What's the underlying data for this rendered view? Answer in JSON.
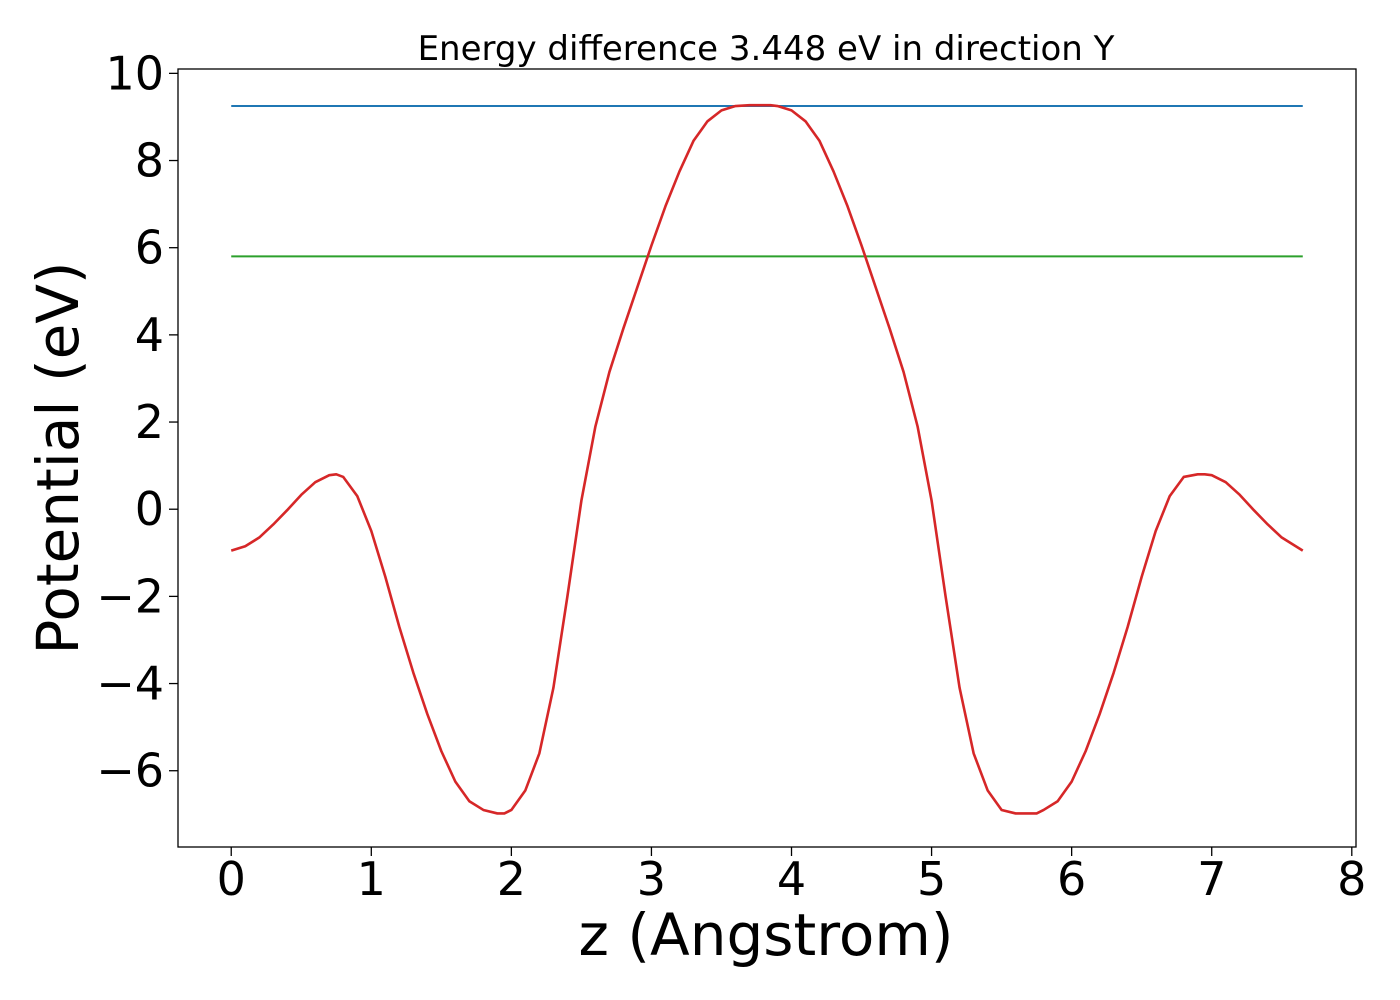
{
  "chart_data": {
    "type": "line",
    "title": "Energy difference 3.448 eV in direction Y",
    "xlabel": "z (Angstrom)",
    "ylabel": "Potential (eV)",
    "xlim": [
      -0.38,
      8.03
    ],
    "ylim": [
      -7.75,
      10.1
    ],
    "x_ticks": [
      0,
      1,
      2,
      3,
      4,
      5,
      6,
      7,
      8
    ],
    "x_tick_labels": [
      "0",
      "1",
      "2",
      "3",
      "4",
      "5",
      "6",
      "7",
      "8"
    ],
    "y_ticks": [
      -6,
      -4,
      -2,
      0,
      2,
      4,
      6,
      8,
      10
    ],
    "y_tick_labels": [
      "−6",
      "−4",
      "−2",
      "0",
      "2",
      "4",
      "6",
      "8",
      "10"
    ],
    "grid": false,
    "series": [
      {
        "color": "#1f77b4",
        "x": [
          0,
          7.65
        ],
        "y": [
          9.25,
          9.25
        ]
      },
      {
        "color": "#2ca02c",
        "x": [
          0,
          7.65
        ],
        "y": [
          5.8,
          5.8
        ]
      },
      {
        "color": "#d62728",
        "x": [
          0,
          0.1,
          0.2,
          0.3,
          0.4,
          0.5,
          0.6,
          0.7,
          0.75,
          0.8,
          0.9,
          1.0,
          1.1,
          1.2,
          1.3,
          1.4,
          1.5,
          1.6,
          1.7,
          1.8,
          1.9,
          1.95,
          2.0,
          2.1,
          2.2,
          2.3,
          2.4,
          2.5,
          2.6,
          2.7,
          2.8,
          2.9,
          3.0,
          3.1,
          3.2,
          3.3,
          3.4,
          3.5,
          3.6,
          3.7,
          3.8,
          3.85,
          3.9,
          4.0,
          4.1,
          4.2,
          4.3,
          4.4,
          4.5,
          4.6,
          4.7,
          4.8,
          4.9,
          5.0,
          5.1,
          5.2,
          5.3,
          5.4,
          5.5,
          5.6,
          5.7,
          5.75,
          5.8,
          5.9,
          6.0,
          6.1,
          6.2,
          6.3,
          6.4,
          6.5,
          6.6,
          6.7,
          6.8,
          6.9,
          6.95,
          7.0,
          7.1,
          7.2,
          7.3,
          7.4,
          7.5,
          7.6,
          7.65
        ],
        "y": [
          -0.95,
          -0.85,
          -0.65,
          -0.35,
          -0.02,
          0.33,
          0.62,
          0.78,
          0.8,
          0.74,
          0.3,
          -0.5,
          -1.55,
          -2.7,
          -3.75,
          -4.7,
          -5.55,
          -6.25,
          -6.7,
          -6.9,
          -6.98,
          -6.98,
          -6.9,
          -6.45,
          -5.6,
          -4.1,
          -2.0,
          0.2,
          1.9,
          3.15,
          4.15,
          5.1,
          6.05,
          6.95,
          7.75,
          8.45,
          8.9,
          9.15,
          9.25,
          9.27,
          9.27,
          9.27,
          9.25,
          9.15,
          8.9,
          8.45,
          7.75,
          6.95,
          6.05,
          5.1,
          4.15,
          3.15,
          1.9,
          0.2,
          -2.0,
          -4.1,
          -5.6,
          -6.45,
          -6.9,
          -6.98,
          -6.98,
          -6.98,
          -6.9,
          -6.7,
          -6.25,
          -5.55,
          -4.7,
          -3.75,
          -2.7,
          -1.55,
          -0.5,
          0.3,
          0.74,
          0.8,
          0.8,
          0.78,
          0.62,
          0.33,
          -0.02,
          -0.35,
          -0.65,
          -0.85,
          -0.95
        ]
      }
    ]
  }
}
